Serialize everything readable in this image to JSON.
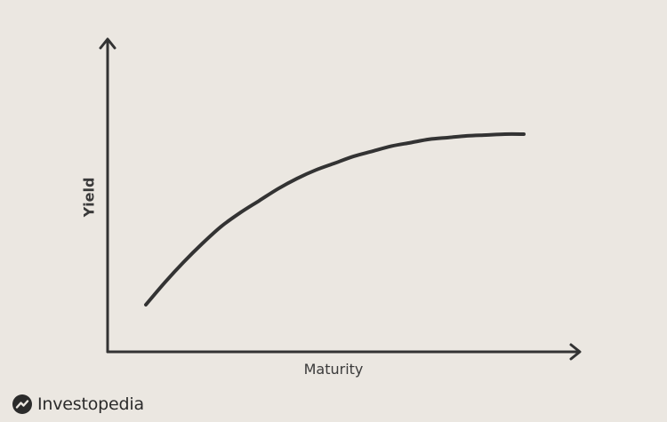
{
  "chart_data": {
    "type": "line",
    "title": "",
    "xlabel": "Maturity",
    "ylabel": "Yield",
    "grid": false,
    "legend": "none",
    "axes_ticks": false,
    "series": [
      {
        "x": [
          0,
          0.05,
          0.1,
          0.15,
          0.2,
          0.25,
          0.3,
          0.35,
          0.4,
          0.45,
          0.5,
          0.55,
          0.6,
          0.65,
          0.7,
          0.75,
          0.8,
          0.85,
          0.9,
          0.95,
          1.0
        ],
        "y": [
          0.0,
          0.13,
          0.25,
          0.36,
          0.46,
          0.54,
          0.61,
          0.68,
          0.74,
          0.79,
          0.83,
          0.87,
          0.9,
          0.93,
          0.95,
          0.97,
          0.98,
          0.99,
          0.995,
          1.0,
          1.0
        ]
      }
    ],
    "colors": {
      "line": "#333333",
      "axis": "#333333",
      "background": "#ebe7e1"
    }
  },
  "brand": {
    "name": "Investopedia",
    "icon": "investopedia-logo-icon"
  }
}
